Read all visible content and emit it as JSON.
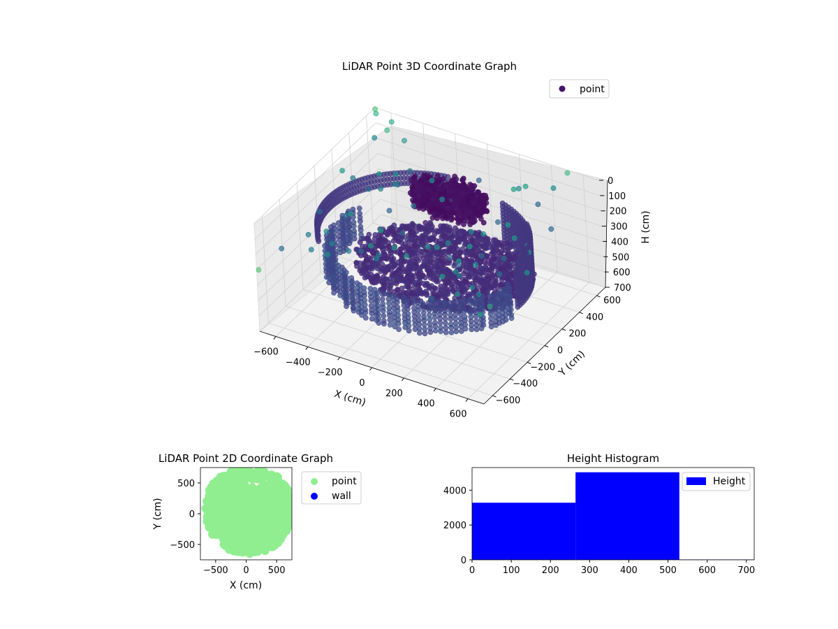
{
  "colors": {
    "viridis_dark": "#440154",
    "viridis_mid": "#3b528b",
    "viridis_teal": "#21918c",
    "viridis_green": "#5ec962",
    "viridis_light": "#fde725",
    "point_2d": "#90ee90",
    "wall_2d": "#0000ff",
    "hist_fill": "#0000ff",
    "pane_fill": "#f2f2f2",
    "grid": "#d0d0d0"
  },
  "chart_data": [
    {
      "type": "scatter",
      "title": "LiDAR Point 3D Coordinate Graph",
      "xlabel": "X (cm)",
      "ylabel": "Y (cm)",
      "zlabel": "H (cm)",
      "xlim": [
        -700,
        700
      ],
      "ylim": [
        -700,
        700
      ],
      "zlim": [
        0,
        700
      ],
      "z_inverted": true,
      "x_ticks": [
        "−600",
        "−400",
        "−200",
        "0",
        "200",
        "400",
        "600"
      ],
      "x_tick_values": [
        -600,
        -400,
        -200,
        0,
        200,
        400,
        600
      ],
      "y_ticks": [
        "−600",
        "−400",
        "−200",
        "0",
        "200",
        "400",
        "600"
      ],
      "y_tick_values": [
        -600,
        -400,
        -200,
        0,
        200,
        400,
        600
      ],
      "z_ticks": [
        "0",
        "100",
        "200",
        "300",
        "400",
        "500",
        "600",
        "700"
      ],
      "z_tick_values": [
        0,
        100,
        200,
        300,
        400,
        500,
        600,
        700
      ],
      "legend": [
        "point"
      ],
      "legend_position": "upper-right",
      "colormap": "viridis",
      "grid": true,
      "clusters": [
        {
          "shape": "ring",
          "cx": 0,
          "cy": 0,
          "r": 560,
          "z": [
            180,
            500
          ],
          "note": "wall ring"
        },
        {
          "shape": "disc",
          "cx": 0,
          "cy": 150,
          "r": 520,
          "z": 480
        },
        {
          "shape": "blob",
          "cx": 20,
          "cy": 240,
          "r": 260,
          "z": 120
        },
        {
          "shape": "sparse",
          "z": [
            0,
            400
          ]
        }
      ]
    },
    {
      "type": "scatter",
      "title": "LiDAR Point 2D Coordinate Graph",
      "xlabel": "X (cm)",
      "ylabel": "Y (cm)",
      "xlim": [
        -750,
        750
      ],
      "ylim": [
        -750,
        750
      ],
      "x_ticks": [
        "−500",
        "0",
        "500"
      ],
      "x_tick_values": [
        -500,
        0,
        500
      ],
      "y_ticks": [
        "−500",
        "0",
        "500"
      ],
      "y_tick_values": [
        -500,
        0,
        500
      ],
      "legend": [
        "point",
        "wall"
      ],
      "legend_position": "outside-right",
      "series": [
        {
          "name": "point",
          "color": "#90ee90"
        },
        {
          "name": "wall",
          "color": "#0000ff"
        }
      ]
    },
    {
      "type": "bar",
      "title": "Height Histogram",
      "xlim": [
        0,
        720
      ],
      "ylim": [
        0,
        5300
      ],
      "x_ticks": [
        "0",
        "100",
        "200",
        "300",
        "400",
        "500",
        "600",
        "700"
      ],
      "x_tick_values": [
        0,
        100,
        200,
        300,
        400,
        500,
        600,
        700
      ],
      "y_ticks": [
        "0",
        "2000",
        "4000"
      ],
      "y_tick_values": [
        0,
        2000,
        4000
      ],
      "legend": [
        "Height"
      ],
      "legend_position": "upper-right",
      "bins": [
        {
          "start": 0,
          "end": 264,
          "count": 3280
        },
        {
          "start": 264,
          "end": 529,
          "count": 5030
        },
        {
          "start": 529,
          "end": 720,
          "count": 20
        }
      ]
    }
  ]
}
